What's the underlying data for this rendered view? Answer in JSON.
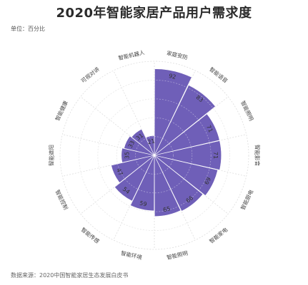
{
  "header": {
    "title": "2020年智能家居产品用户需求度",
    "unit": "单位：百分比"
  },
  "footer": {
    "source": "数据来源：2020中国智能家居生态发展白皮书"
  },
  "chart_data": {
    "type": "polar-bar",
    "title": "2020年智能家居产品用户需求度",
    "unit": "百分比",
    "categories": [
      "家庭安防",
      "智能语音",
      "智能照明",
      "智能影音",
      "智能厨电",
      "智能家电",
      "智能照明",
      "智能环境",
      "智能传感",
      "智能控制",
      "智能遮阳",
      "智能健康",
      "可视对讲",
      "智能机器人"
    ],
    "values": [
      92,
      83,
      71,
      71,
      69,
      66,
      65,
      59,
      54,
      47,
      35,
      33,
      31,
      21
    ],
    "rlim": [
      0,
      100
    ],
    "colors": {
      "bar": "#6f5fb8",
      "grid": "#dddddd"
    }
  }
}
